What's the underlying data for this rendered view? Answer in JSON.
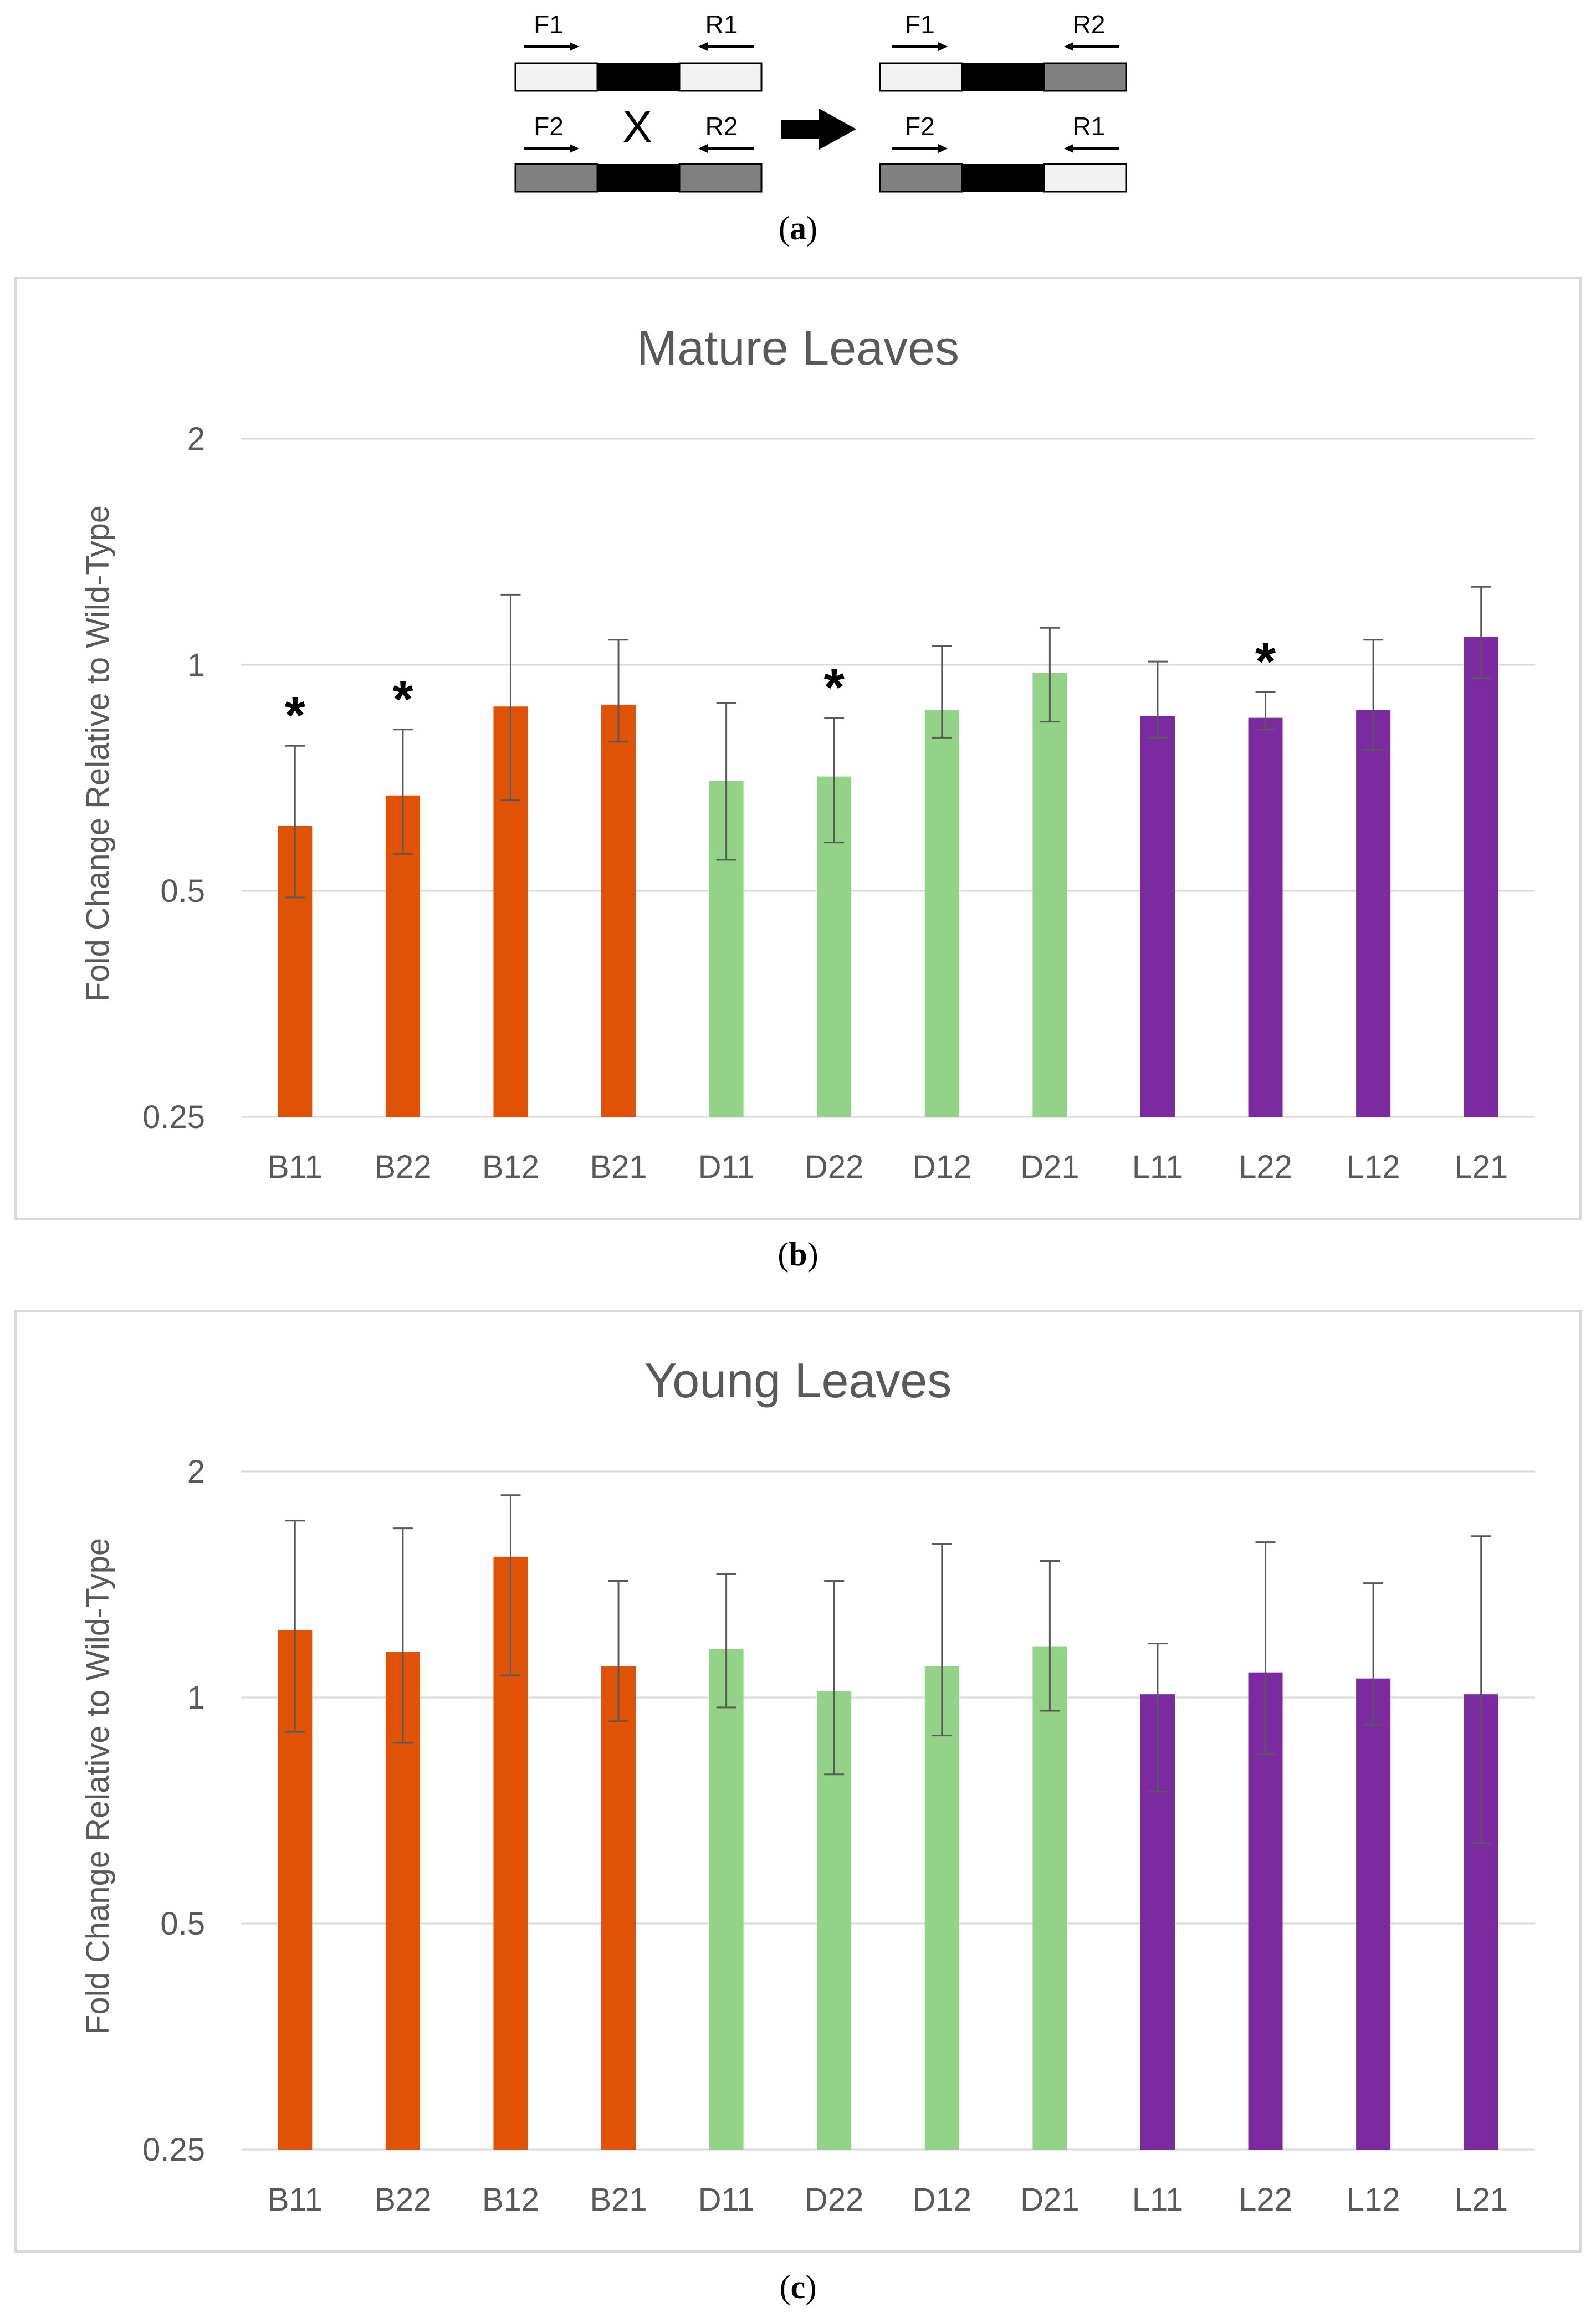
{
  "panel_a": {
    "caption": "a",
    "left_top": {
      "f": "F1",
      "r": "R1"
    },
    "left_bottom": {
      "f": "F2",
      "r": "R2"
    },
    "right_top": {
      "f": "F1",
      "r": "R2"
    },
    "right_bottom": {
      "f": "F2",
      "r": "R1"
    },
    "crossover_mark": "X",
    "colors": {
      "light": "#f2f2f2",
      "dark": "#808080",
      "core": "#000000"
    }
  },
  "colors": {
    "B": "#e05206",
    "D": "#93d388",
    "L": "#7b2aa0",
    "grid": "#d9d9d9",
    "axis_text": "#595959"
  },
  "chart_data": [
    {
      "panel": "b",
      "type": "bar",
      "title": "Mature Leaves",
      "xlabel": "",
      "ylabel": "Fold Change Relative to Wild-Type",
      "yscale": "log2",
      "ylim": [
        0.25,
        2
      ],
      "yticks": [
        "2",
        "1",
        "0.5",
        "0.25"
      ],
      "yticks_values": [
        2,
        1,
        0.5,
        0.25
      ],
      "categories": [
        "B11",
        "B22",
        "B12",
        "B21",
        "D11",
        "D22",
        "D12",
        "D21",
        "L11",
        "L22",
        "L12",
        "L21"
      ],
      "groups": [
        "B",
        "B",
        "B",
        "B",
        "D",
        "D",
        "D",
        "D",
        "L",
        "L",
        "L",
        "L"
      ],
      "values": [
        0.61,
        0.67,
        0.88,
        0.885,
        0.7,
        0.71,
        0.87,
        0.975,
        0.855,
        0.85,
        0.87,
        1.09
      ],
      "err_low": [
        0.49,
        0.56,
        0.66,
        0.79,
        0.55,
        0.58,
        0.8,
        0.84,
        0.8,
        0.82,
        0.77,
        0.96
      ],
      "err_high": [
        0.78,
        0.82,
        1.24,
        1.08,
        0.89,
        0.85,
        1.06,
        1.12,
        1.01,
        0.92,
        1.08,
        1.27
      ],
      "annotations": [
        "*",
        "*",
        "",
        "",
        "",
        "*",
        "",
        "",
        "",
        "*",
        "",
        ""
      ]
    },
    {
      "panel": "c",
      "type": "bar",
      "title": "Young Leaves",
      "xlabel": "",
      "ylabel": "Fold Change Relative to Wild-Type",
      "yscale": "log2",
      "ylim": [
        0.25,
        2
      ],
      "yticks": [
        "2",
        "1",
        "0.5",
        "0.25"
      ],
      "yticks_values": [
        2,
        1,
        0.5,
        0.25
      ],
      "categories": [
        "B11",
        "B22",
        "B12",
        "B21",
        "D11",
        "D22",
        "D12",
        "D21",
        "L11",
        "L22",
        "L12",
        "L21"
      ],
      "groups": [
        "B",
        "B",
        "B",
        "B",
        "D",
        "D",
        "D",
        "D",
        "L",
        "L",
        "L",
        "L"
      ],
      "values": [
        1.23,
        1.15,
        1.54,
        1.1,
        1.16,
        1.02,
        1.1,
        1.17,
        1.01,
        1.08,
        1.06,
        1.01
      ],
      "err_low": [
        0.9,
        0.87,
        1.07,
        0.93,
        0.97,
        0.79,
        0.89,
        0.96,
        0.75,
        0.84,
        0.92,
        0.64
      ],
      "err_high": [
        1.72,
        1.68,
        1.86,
        1.43,
        1.46,
        1.43,
        1.6,
        1.52,
        1.18,
        1.61,
        1.42,
        1.64
      ],
      "annotations": [
        "",
        "",
        "",
        "",
        "",
        "",
        "",
        "",
        "",
        "",
        "",
        ""
      ]
    }
  ]
}
